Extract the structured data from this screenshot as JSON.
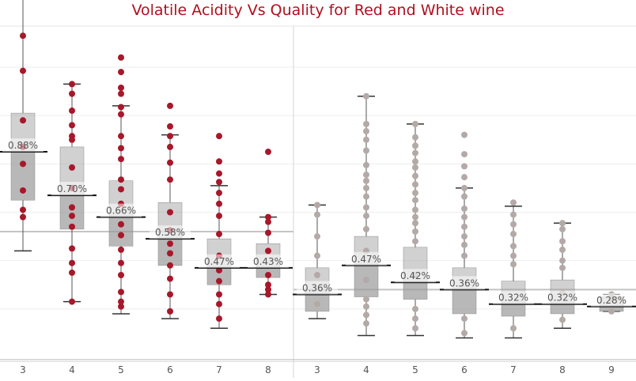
{
  "chart_data": {
    "type": "boxplot",
    "title": "Volatile Acidity Vs Quality for Red and White wine",
    "xlabel": "",
    "ylabel": "",
    "grid": true,
    "colors": {
      "red": "#a8172a",
      "white": "#b3aaa7",
      "title": "#b0101e",
      "box": "#9a9a9a",
      "reference_line": "#c4c4c4"
    },
    "panels": [
      {
        "name": "",
        "color_key": "red",
        "reference_line": 0.52,
        "categories": [
          "3",
          "4",
          "5",
          "6",
          "7",
          "8"
        ],
        "boxes": [
          {
            "quality": "3",
            "label": "0.88%",
            "median": 0.85,
            "q1": 0.65,
            "q3": 1.01,
            "whisker_low": 0.44,
            "whisker_high": 1.58
          },
          {
            "quality": "4",
            "label": "0.70%",
            "median": 0.67,
            "q1": 0.53,
            "q3": 0.87,
            "whisker_low": 0.23,
            "whisker_high": 1.13
          },
          {
            "quality": "5",
            "label": "0.66%",
            "median": 0.58,
            "q1": 0.46,
            "q3": 0.73,
            "whisker_low": 0.18,
            "whisker_high": 1.04
          },
          {
            "quality": "6",
            "label": "0.58%",
            "median": 0.49,
            "q1": 0.38,
            "q3": 0.64,
            "whisker_low": 0.16,
            "whisker_high": 0.92
          },
          {
            "quality": "7",
            "label": "0.47%",
            "median": 0.37,
            "q1": 0.3,
            "q3": 0.49,
            "whisker_low": 0.12,
            "whisker_high": 0.71
          },
          {
            "quality": "8",
            "label": "0.43%",
            "median": 0.37,
            "q1": 0.33,
            "q3": 0.47,
            "whisker_low": 0.26,
            "whisker_high": 0.58
          }
        ],
        "outliers": [
          {
            "quality": "3",
            "values": [
              1.33,
              1.185,
              0.98,
              0.87,
              0.8,
              0.69,
              0.61,
              0.58
            ]
          },
          {
            "quality": "4",
            "values": [
              1.13,
              1.09,
              1.02,
              0.96,
              0.915,
              0.9,
              0.785,
              0.7,
              0.62,
              0.585,
              0.54,
              0.45,
              0.39,
              0.35,
              0.23
            ]
          },
          {
            "quality": "5",
            "values": [
              1.24,
              1.18,
              1.115,
              1.09,
              1.035,
              1.005,
              0.915,
              0.865,
              0.82,
              0.735,
              0.695,
              0.635,
              0.55,
              0.505,
              0.445,
              0.39,
              0.34,
              0.27,
              0.23,
              0.21
            ]
          },
          {
            "quality": "6",
            "values": [
              1.04,
              0.955,
              0.915,
              0.87,
              0.805,
              0.735,
              0.6,
              0.525,
              0.47,
              0.43,
              0.38,
              0.325,
              0.26,
              0.19
            ]
          },
          {
            "quality": "7",
            "values": [
              0.915,
              0.81,
              0.76,
              0.725,
              0.68,
              0.635,
              0.585,
              0.51,
              0.42,
              0.36,
              0.315,
              0.26,
              0.22,
              0.16
            ]
          },
          {
            "quality": "8",
            "values": [
              0.85,
              0.58,
              0.56,
              0.515,
              0.44,
              0.34,
              0.3,
              0.28,
              0.26
            ]
          }
        ]
      },
      {
        "name": "",
        "color_key": "white",
        "reference_line": 0.28,
        "categories": [
          "3",
          "4",
          "5",
          "6",
          "7",
          "8",
          "9"
        ],
        "boxes": [
          {
            "quality": "3",
            "label": "0.36%",
            "median": 0.26,
            "q1": 0.19,
            "q3": 0.37,
            "whisker_low": 0.16,
            "whisker_high": 0.63
          },
          {
            "quality": "4",
            "label": "0.47%",
            "median": 0.38,
            "q1": 0.25,
            "q3": 0.5,
            "whisker_low": 0.09,
            "whisker_high": 1.08
          },
          {
            "quality": "5",
            "label": "0.42%",
            "median": 0.31,
            "q1": 0.24,
            "q3": 0.455,
            "whisker_low": 0.09,
            "whisker_high": 0.965
          },
          {
            "quality": "6",
            "label": "0.36%",
            "median": 0.28,
            "q1": 0.18,
            "q3": 0.37,
            "whisker_low": 0.08,
            "whisker_high": 0.7
          },
          {
            "quality": "7",
            "label": "0.32%",
            "median": 0.22,
            "q1": 0.17,
            "q3": 0.315,
            "whisker_low": 0.08,
            "whisker_high": 0.625
          },
          {
            "quality": "8",
            "label": "0.32%",
            "median": 0.22,
            "q1": 0.18,
            "q3": 0.32,
            "whisker_low": 0.12,
            "whisker_high": 0.555
          },
          {
            "quality": "9",
            "label": "0.28%",
            "median": 0.21,
            "q1": 0.19,
            "q3": 0.25,
            "whisker_low": 0.19,
            "whisker_high": 0.26
          }
        ],
        "outliers": [
          {
            "quality": "3",
            "values": [
              0.63,
              0.59,
              0.5,
              0.42,
              0.34,
              0.22
            ]
          },
          {
            "quality": "4",
            "values": [
              1.08,
              0.965,
              0.935,
              0.9,
              0.855,
              0.795,
              0.755,
              0.73,
              0.7,
              0.665,
              0.62,
              0.585,
              0.53,
              0.44,
              0.32,
              0.24,
              0.21,
              0.175,
              0.14
            ]
          },
          {
            "quality": "5",
            "values": [
              0.965,
              0.91,
              0.875,
              0.845,
              0.81,
              0.785,
              0.75,
              0.715,
              0.68,
              0.65,
              0.61,
              0.58,
              0.555,
              0.52,
              0.48,
              0.34,
              0.2,
              0.16,
              0.12
            ]
          },
          {
            "quality": "6",
            "values": [
              0.92,
              0.84,
              0.79,
              0.745,
              0.7,
              0.665,
              0.615,
              0.58,
              0.54,
              0.5,
              0.465,
              0.42,
              0.16,
              0.1
            ]
          },
          {
            "quality": "7",
            "values": [
              0.64,
              0.59,
              0.55,
              0.51,
              0.46,
              0.42,
              0.385,
              0.12
            ]
          },
          {
            "quality": "8",
            "values": [
              0.555,
              0.53,
              0.48,
              0.445,
              0.4,
              0.37,
              0.265,
              0.155
            ]
          },
          {
            "quality": "9",
            "values": [
              0.26,
              0.24,
              0.19
            ]
          }
        ]
      }
    ]
  }
}
